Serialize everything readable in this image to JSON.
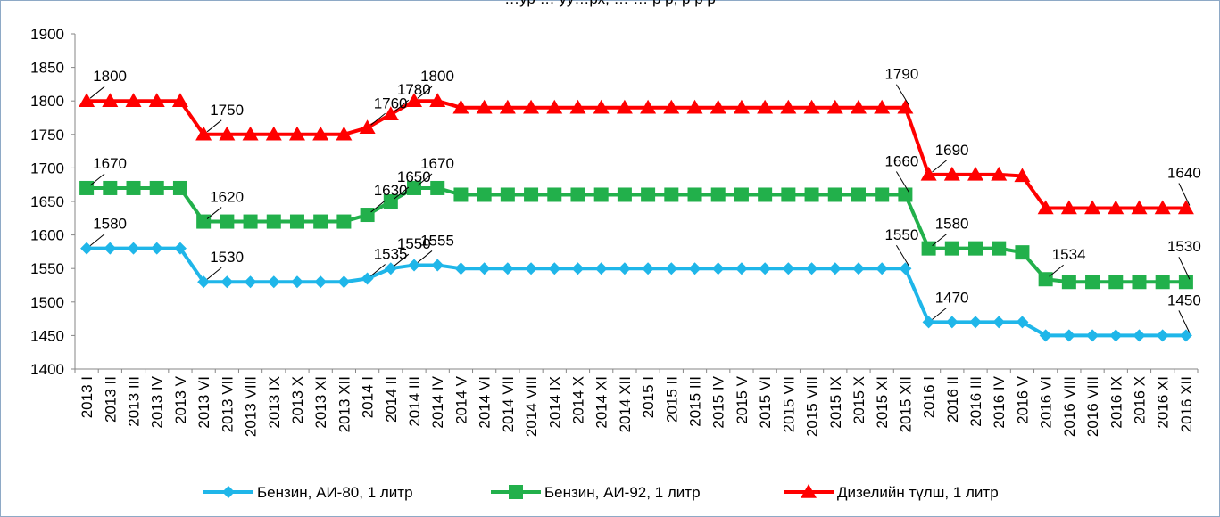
{
  "chart_data": {
    "type": "line",
    "title": "…ур … уу…рх, … … р р, р р р",
    "title_color": "#000000",
    "ylim": [
      1400,
      1900
    ],
    "yticks": [
      1400,
      1450,
      1500,
      1550,
      1600,
      1650,
      1700,
      1750,
      1800,
      1850,
      1900
    ],
    "grid": false,
    "legend_position": "bottom",
    "categories": [
      "2013 I",
      "2013 II",
      "2013 III",
      "2013 IV",
      "2013 V",
      "2013 VI",
      "2013 VII",
      "2013 VIII",
      "2013 IX",
      "2013 X",
      "2013 XI",
      "2013 XII",
      "2014 I",
      "2014 II",
      "2014 III",
      "2014 IV",
      "2014 V",
      "2014 VI",
      "2014 VII",
      "2014 VIII",
      "2014 IX",
      "2014 X",
      "2014 XI",
      "2014 XII",
      "2015 I",
      "2015 II",
      "2015 III",
      "2015 IV",
      "2015 V",
      "2015 VI",
      "2015 VII",
      "2015 VIII",
      "2015 IX",
      "2015 X",
      "2015 XI",
      "2015 XII",
      "2016 I",
      "2016 II",
      "2016 III",
      "2016 IV",
      "2016 V",
      "2016 VI",
      "2016 VIII",
      "2016 VIII",
      "2016 IX",
      "2016 X",
      "2016 XI",
      "2016 XII"
    ],
    "series": [
      {
        "name": "Бензин, АИ-80, 1 литр",
        "color": "#1FB6E9",
        "marker": "diamond",
        "values": [
          1580,
          1580,
          1580,
          1580,
          1580,
          1530,
          1530,
          1530,
          1530,
          1530,
          1530,
          1530,
          1535,
          1550,
          1555,
          1555,
          1550,
          1550,
          1550,
          1550,
          1550,
          1550,
          1550,
          1550,
          1550,
          1550,
          1550,
          1550,
          1550,
          1550,
          1550,
          1550,
          1550,
          1550,
          1550,
          1550,
          1470,
          1470,
          1470,
          1470,
          1470,
          1450,
          1450,
          1450,
          1450,
          1450,
          1450,
          1450
        ],
        "labels": [
          {
            "index": 0,
            "text": "1580"
          },
          {
            "index": 5,
            "text": "1530"
          },
          {
            "index": 12,
            "text": "1535"
          },
          {
            "index": 13,
            "text": "1550"
          },
          {
            "index": 14,
            "text": "1555"
          },
          {
            "index": 35,
            "text": "1550"
          },
          {
            "index": 36,
            "text": "1470"
          },
          {
            "index": 47,
            "text": "1450"
          }
        ]
      },
      {
        "name": "Бензин, АИ-92, 1 литр",
        "color": "#22B04B",
        "marker": "square",
        "values": [
          1670,
          1670,
          1670,
          1670,
          1670,
          1620,
          1620,
          1620,
          1620,
          1620,
          1620,
          1620,
          1630,
          1650,
          1670,
          1670,
          1660,
          1660,
          1660,
          1660,
          1660,
          1660,
          1660,
          1660,
          1660,
          1660,
          1660,
          1660,
          1660,
          1660,
          1660,
          1660,
          1660,
          1660,
          1660,
          1660,
          1580,
          1580,
          1580,
          1580,
          1574,
          1534,
          1530,
          1530,
          1530,
          1530,
          1530,
          1530
        ],
        "labels": [
          {
            "index": 0,
            "text": "1670"
          },
          {
            "index": 5,
            "text": "1620"
          },
          {
            "index": 12,
            "text": "1630"
          },
          {
            "index": 13,
            "text": "1650"
          },
          {
            "index": 14,
            "text": "1670"
          },
          {
            "index": 35,
            "text": "1660"
          },
          {
            "index": 36,
            "text": "1580"
          },
          {
            "index": 41,
            "text": "1534"
          },
          {
            "index": 47,
            "text": "1530"
          }
        ]
      },
      {
        "name": "Дизелийн түлш, 1 литр",
        "color": "#FF0000",
        "marker": "triangle",
        "values": [
          1800,
          1800,
          1800,
          1800,
          1800,
          1750,
          1750,
          1750,
          1750,
          1750,
          1750,
          1750,
          1760,
          1780,
          1800,
          1800,
          1790,
          1790,
          1790,
          1790,
          1790,
          1790,
          1790,
          1790,
          1790,
          1790,
          1790,
          1790,
          1790,
          1790,
          1790,
          1790,
          1790,
          1790,
          1790,
          1790,
          1690,
          1690,
          1690,
          1690,
          1688,
          1640,
          1640,
          1640,
          1640,
          1640,
          1640,
          1640
        ],
        "labels": [
          {
            "index": 0,
            "text": "1800"
          },
          {
            "index": 5,
            "text": "1750"
          },
          {
            "index": 12,
            "text": "1760"
          },
          {
            "index": 13,
            "text": "1780"
          },
          {
            "index": 14,
            "text": "1800"
          },
          {
            "index": 35,
            "text": "1790"
          },
          {
            "index": 36,
            "text": "1690"
          },
          {
            "index": 47,
            "text": "1640"
          }
        ]
      }
    ]
  }
}
